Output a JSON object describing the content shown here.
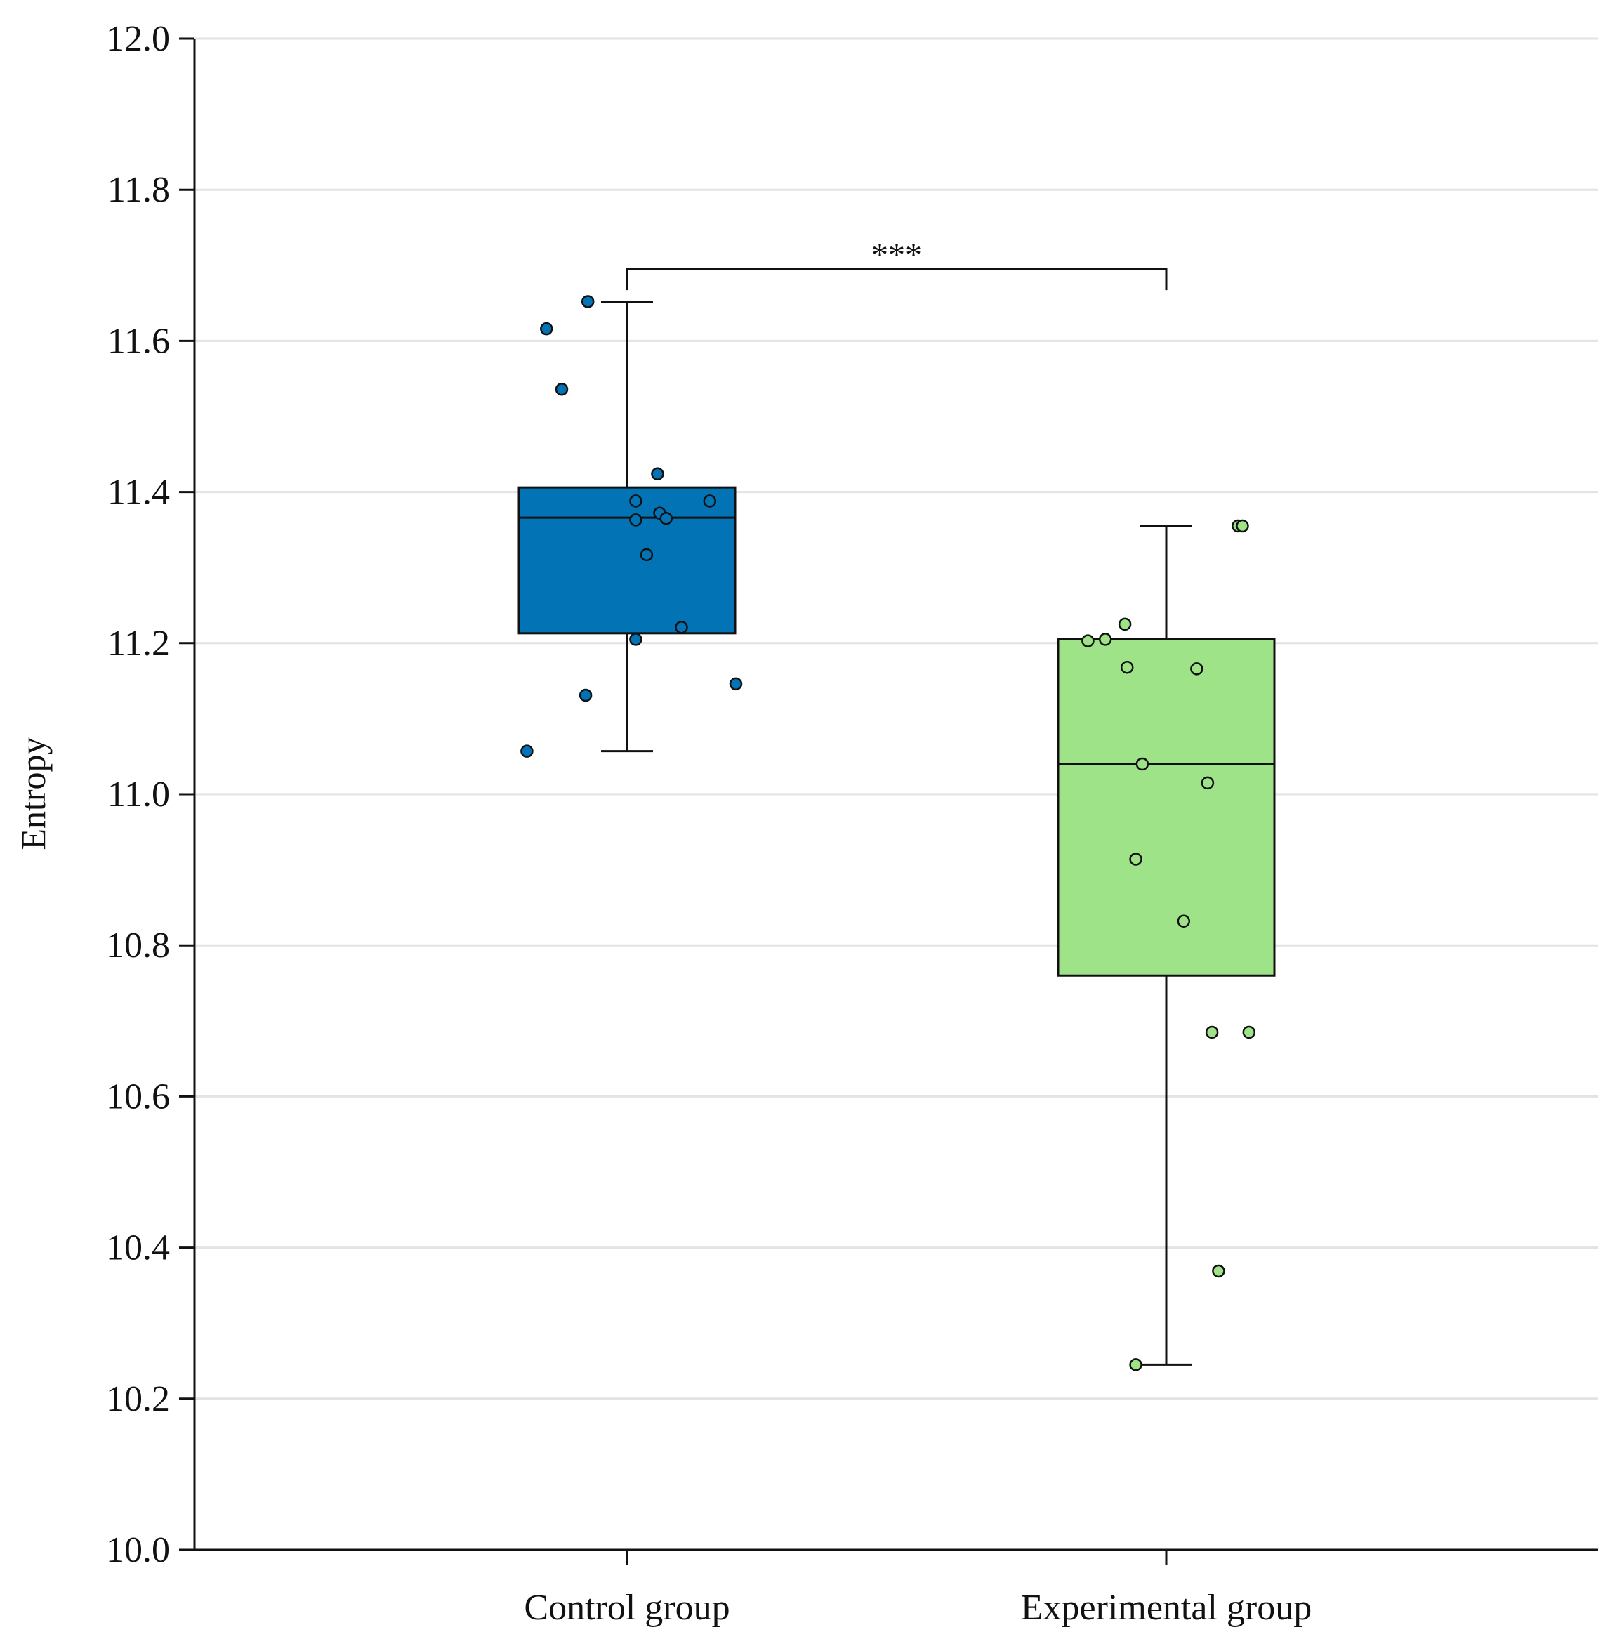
{
  "chart_data": {
    "type": "box",
    "title": "",
    "xlabel": "",
    "ylabel": "Entropy",
    "ylim": [
      10.0,
      12.0
    ],
    "yticks": [
      "10.0",
      "10.2",
      "10.4",
      "10.6",
      "10.8",
      "11.0",
      "11.2",
      "11.4",
      "11.6",
      "11.8",
      "12.0"
    ],
    "grid": true,
    "categories": [
      "Control group",
      "Experimental group"
    ],
    "boxes": [
      {
        "name": "Control group",
        "color": "#0274b6",
        "whisker_low": 11.057,
        "q1": 11.213,
        "median": 11.366,
        "q3": 11.406,
        "whisker_high": 11.652,
        "points": [
          {
            "offset": -0.18,
            "y": 11.652
          },
          {
            "offset": -0.37,
            "y": 11.616
          },
          {
            "offset": -0.3,
            "y": 11.536
          },
          {
            "offset": 0.14,
            "y": 11.424
          },
          {
            "offset": 0.04,
            "y": 11.388
          },
          {
            "offset": 0.38,
            "y": 11.388
          },
          {
            "offset": 0.15,
            "y": 11.372
          },
          {
            "offset": 0.18,
            "y": 11.365
          },
          {
            "offset": 0.04,
            "y": 11.363
          },
          {
            "offset": 0.09,
            "y": 11.317
          },
          {
            "offset": 0.25,
            "y": 11.221
          },
          {
            "offset": 0.04,
            "y": 11.205
          },
          {
            "offset": 0.5,
            "y": 11.146
          },
          {
            "offset": -0.19,
            "y": 11.131
          },
          {
            "offset": -0.46,
            "y": 11.057
          }
        ]
      },
      {
        "name": "Experimental group",
        "color": "#9ee387",
        "whisker_low": 10.245,
        "q1": 10.76,
        "median": 11.04,
        "q3": 11.205,
        "whisker_high": 11.355,
        "points": [
          {
            "offset": 0.33,
            "y": 11.355
          },
          {
            "offset": 0.35,
            "y": 11.355
          },
          {
            "offset": -0.19,
            "y": 11.225
          },
          {
            "offset": -0.28,
            "y": 11.205
          },
          {
            "offset": -0.36,
            "y": 11.203
          },
          {
            "offset": -0.18,
            "y": 11.168
          },
          {
            "offset": 0.14,
            "y": 11.166
          },
          {
            "offset": -0.11,
            "y": 11.04
          },
          {
            "offset": 0.19,
            "y": 11.015
          },
          {
            "offset": -0.14,
            "y": 10.914
          },
          {
            "offset": 0.08,
            "y": 10.832
          },
          {
            "offset": 0.21,
            "y": 10.685
          },
          {
            "offset": 0.38,
            "y": 10.685
          },
          {
            "offset": 0.24,
            "y": 10.369
          },
          {
            "offset": -0.14,
            "y": 10.245
          }
        ]
      }
    ],
    "annotations": [
      {
        "text": "***",
        "between": [
          "Control group",
          "Experimental group"
        ],
        "y": 11.695
      }
    ]
  }
}
